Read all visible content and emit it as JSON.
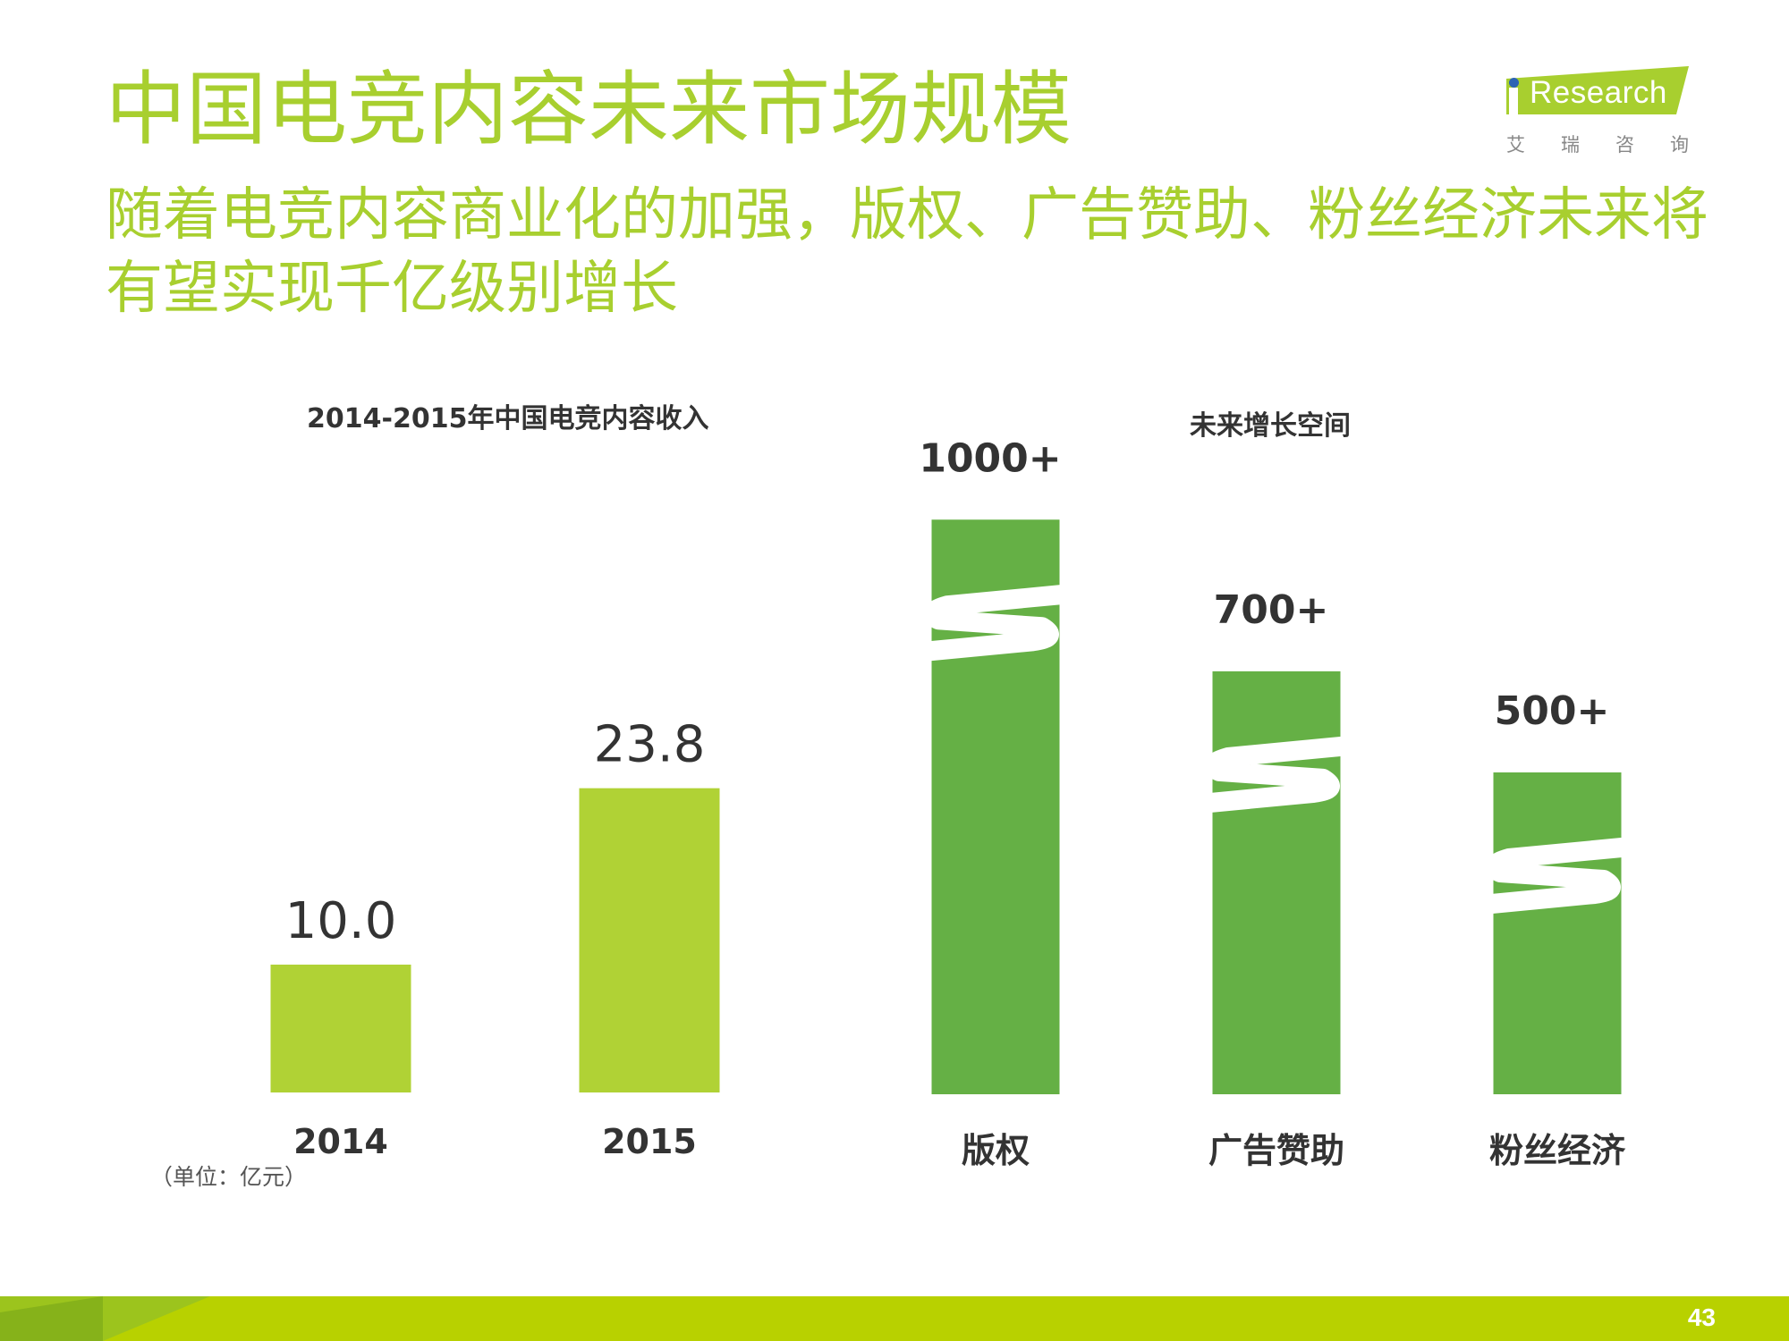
{
  "title": "中国电竞内容未来市场规模",
  "subtitle": "随着电竞内容商业化的加强，版权、广告赞助、粉丝经济未来将有望实现千亿级别增长",
  "logo": {
    "word": "Research",
    "cn": [
      "艾",
      "瑞",
      "咨",
      "询"
    ]
  },
  "unit": "（单位：亿元）",
  "page_number": "43",
  "colors": {
    "title": "#a8cf2f",
    "left_bars": "#b0d235",
    "right_bars": "#65b045",
    "footer": "#b8d100"
  },
  "chart_data": [
    {
      "type": "bar",
      "title": "2014-2015年中国电竞内容收入",
      "categories": [
        "2014",
        "2015"
      ],
      "values": [
        10.0,
        23.8
      ],
      "value_labels": [
        "10.0",
        "23.8"
      ],
      "xlabel": "",
      "ylabel": "",
      "ylim": [
        0,
        24
      ]
    },
    {
      "type": "bar",
      "title": "未来增长空间",
      "categories": [
        "版权",
        "广告赞助",
        "粉丝经济"
      ],
      "values": [
        1000,
        700,
        500
      ],
      "value_labels": [
        "1000+",
        "700+",
        "500+"
      ],
      "axis_break": true,
      "xlabel": "",
      "ylabel": ""
    }
  ]
}
